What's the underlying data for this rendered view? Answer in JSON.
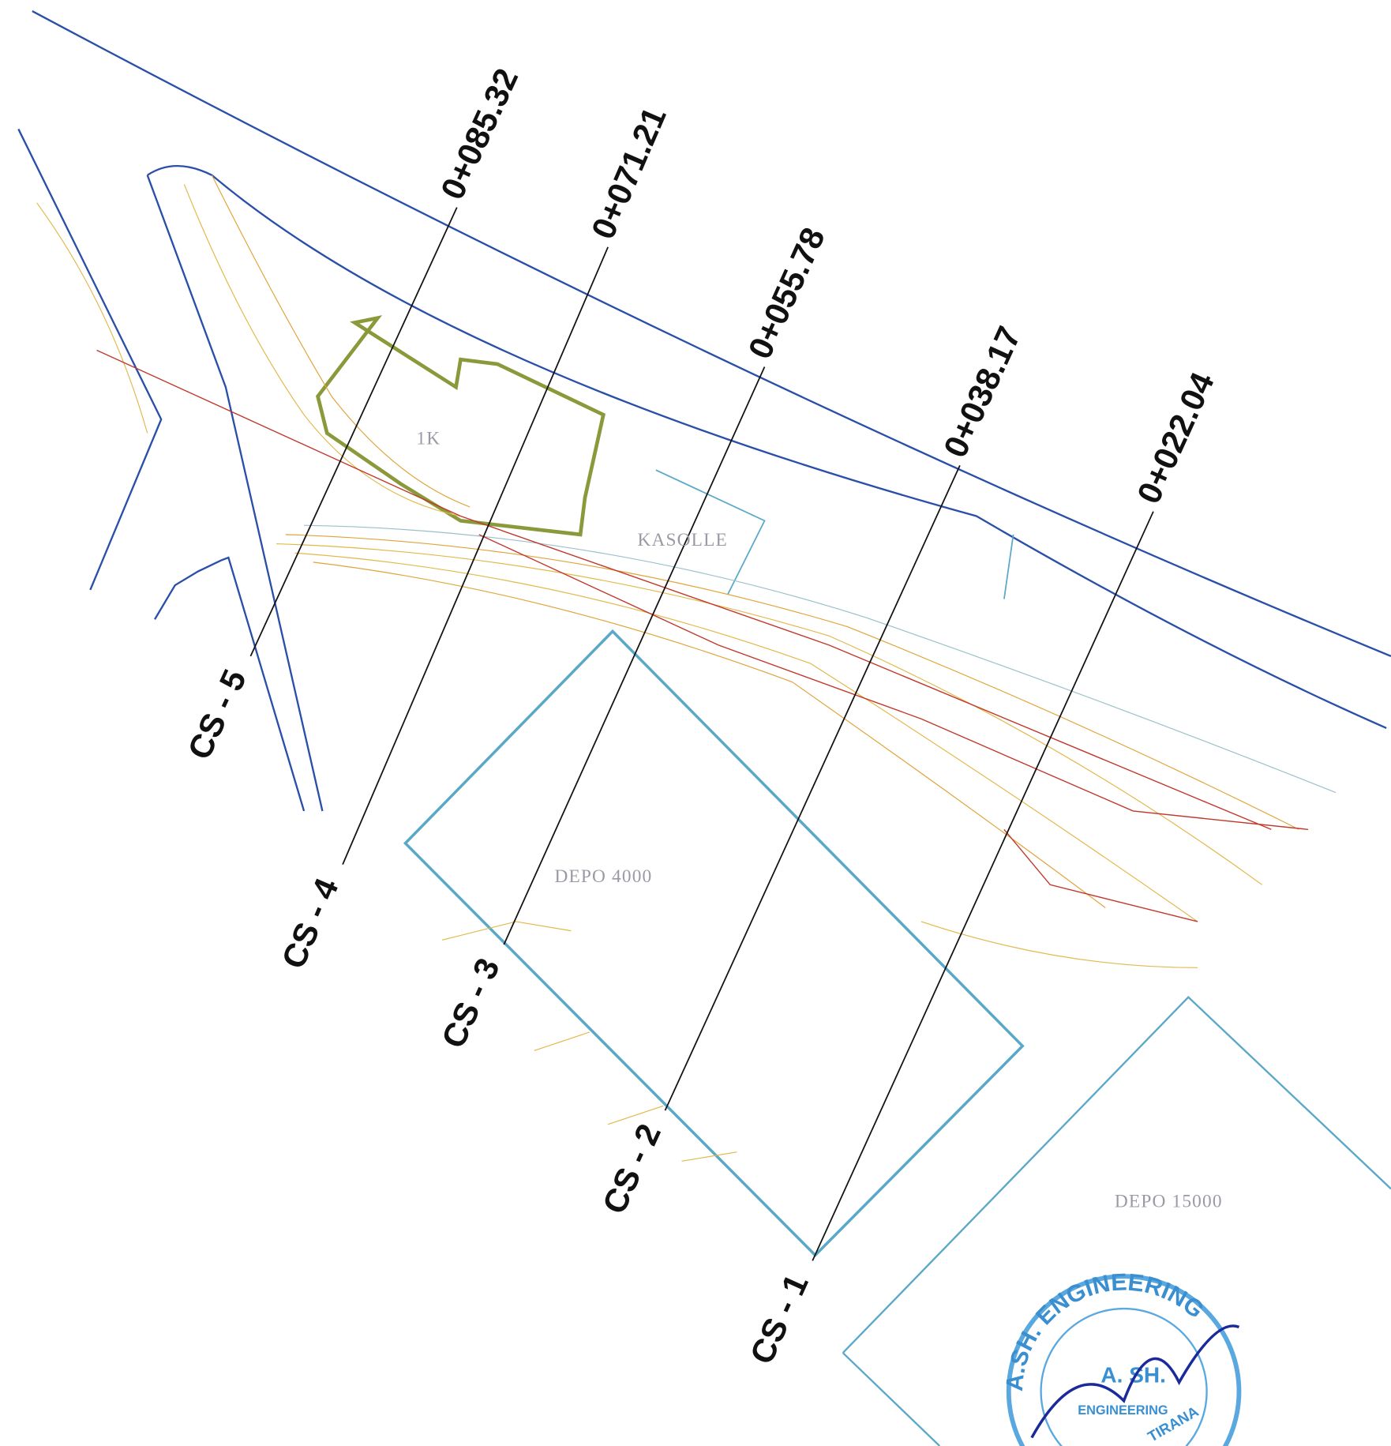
{
  "sections": [
    {
      "station": "0+085.32",
      "label": "CS - 5"
    },
    {
      "station": "0+071.21",
      "label": "CS - 4"
    },
    {
      "station": "0+055.78",
      "label": "CS - 3"
    },
    {
      "station": "0+038.17",
      "label": "CS - 2"
    },
    {
      "station": "0+022.04",
      "label": "CS - 1"
    }
  ],
  "areas": {
    "building": "1K",
    "hut": "KASOLLE",
    "depot_small": "DEPO 4000",
    "depot_large": "DEPO 15000"
  },
  "stamp": {
    "ring": "A.SH. ENGINEERING",
    "center": "A. SH.",
    "inner": "ENGINEERING",
    "city": "TIRANA"
  }
}
